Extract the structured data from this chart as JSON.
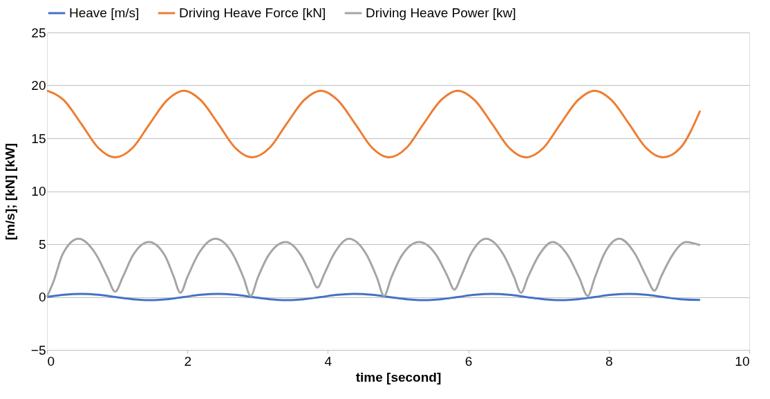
{
  "chart_data": {
    "type": "line",
    "xlabel": "time [second]",
    "ylabel": "[m/s];    [kN]    [kW]",
    "xlim": [
      0,
      10
    ],
    "xticks": [
      0,
      2,
      4,
      6,
      8,
      10
    ],
    "ylim": [
      -5,
      25
    ],
    "yticks": [
      -5,
      0,
      5,
      10,
      15,
      20,
      25
    ],
    "grid": "y",
    "legend": "top",
    "marker": "none",
    "line_style": "solid",
    "series": [
      {
        "name": "Heave [m/s]",
        "color": "#4472c4",
        "x": [
          0,
          0.24,
          0.49,
          0.73,
          0.97,
          1.22,
          1.46,
          1.71,
          1.95,
          2.19,
          2.44,
          2.68,
          2.92,
          3.17,
          3.41,
          3.66,
          3.9,
          4.14,
          4.39,
          4.63,
          4.87,
          5.12,
          5.36,
          5.61,
          5.85,
          6.09,
          6.34,
          6.58,
          6.82,
          7.07,
          7.31,
          7.56,
          7.8,
          8.04,
          8.29,
          8.53,
          8.77,
          9.02,
          9.3
        ],
        "values": [
          0,
          0.21,
          0.3,
          0.21,
          0,
          -0.21,
          -0.3,
          -0.21,
          0,
          0.21,
          0.3,
          0.21,
          0,
          -0.21,
          -0.3,
          -0.21,
          0,
          0.21,
          0.3,
          0.21,
          0,
          -0.21,
          -0.3,
          -0.21,
          0,
          0.21,
          0.3,
          0.21,
          0,
          -0.21,
          -0.3,
          -0.21,
          0,
          0.21,
          0.3,
          0.21,
          0,
          -0.21,
          -0.28
        ]
      },
      {
        "name": "Driving Heave Force [kN]",
        "color": "#ed7d31",
        "x": [
          0,
          0.24,
          0.49,
          0.73,
          0.97,
          1.22,
          1.46,
          1.71,
          1.95,
          2.19,
          2.44,
          2.68,
          2.92,
          3.17,
          3.41,
          3.66,
          3.9,
          4.14,
          4.39,
          4.63,
          4.87,
          5.12,
          5.36,
          5.61,
          5.85,
          6.09,
          6.34,
          6.58,
          6.82,
          7.07,
          7.31,
          7.56,
          7.8,
          8.04,
          8.29,
          8.53,
          8.77,
          9.02,
          9.3
        ],
        "values": [
          19.5,
          18.6,
          16.35,
          14.1,
          13.2,
          14.1,
          16.35,
          18.6,
          19.5,
          18.6,
          16.35,
          14.1,
          13.2,
          14.1,
          16.35,
          18.6,
          19.5,
          18.6,
          16.35,
          14.1,
          13.2,
          14.1,
          16.35,
          18.6,
          19.5,
          18.6,
          16.35,
          14.1,
          13.2,
          14.1,
          16.35,
          18.6,
          19.5,
          18.6,
          16.35,
          14.1,
          13.2,
          14.1,
          17.6
        ]
      },
      {
        "name": "Driving Heave Power [kw]",
        "color": "#a5a5a5",
        "x": [
          0,
          0.1,
          0.22,
          0.45,
          0.7,
          0.86,
          0.97,
          1.08,
          1.22,
          1.45,
          1.68,
          1.8,
          1.9,
          2.0,
          2.15,
          2.4,
          2.65,
          2.8,
          2.9,
          3.0,
          3.15,
          3.4,
          3.62,
          3.75,
          3.85,
          3.95,
          4.08,
          4.3,
          4.55,
          4.7,
          4.8,
          4.9,
          5.05,
          5.3,
          5.55,
          5.7,
          5.8,
          5.9,
          6.03,
          6.25,
          6.5,
          6.65,
          6.75,
          6.85,
          7.0,
          7.2,
          7.42,
          7.58,
          7.7,
          7.8,
          7.93,
          8.15,
          8.38,
          8.53,
          8.65,
          8.75,
          8.9,
          9.1,
          9.3
        ],
        "values": [
          0,
          1.6,
          4.0,
          5.5,
          4.0,
          1.9,
          0.5,
          1.9,
          3.9,
          5.2,
          3.9,
          2.0,
          0.4,
          1.9,
          4.0,
          5.5,
          4.0,
          1.8,
          0.1,
          1.8,
          3.9,
          5.2,
          3.9,
          2.2,
          0.9,
          2.2,
          4.0,
          5.5,
          4.0,
          1.8,
          0.1,
          1.8,
          3.9,
          5.2,
          3.9,
          2.0,
          0.7,
          2.0,
          4.0,
          5.5,
          4.0,
          1.9,
          0.4,
          1.9,
          3.9,
          5.2,
          3.9,
          1.8,
          0.1,
          1.8,
          4.0,
          5.5,
          4.0,
          2.0,
          0.6,
          2.0,
          3.9,
          5.2,
          4.9
        ]
      }
    ]
  }
}
